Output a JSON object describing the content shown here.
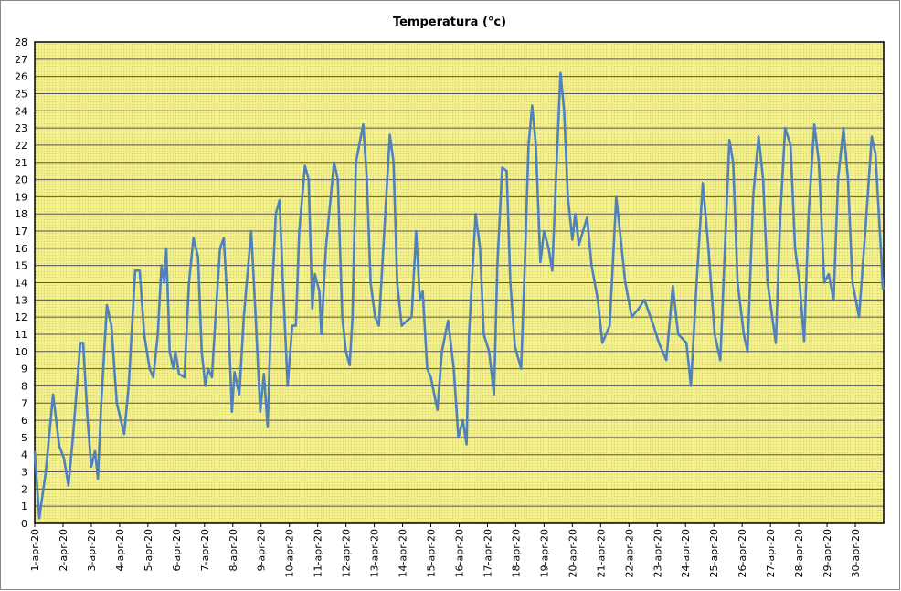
{
  "chart_data": {
    "type": "line",
    "title": "Temperatura (°c)",
    "x": [
      0,
      0.16,
      0.39,
      0.65,
      0.87,
      1.03,
      1.19,
      1.35,
      1.61,
      1.71,
      1.87,
      2.0,
      2.13,
      2.23,
      2.35,
      2.55,
      2.71,
      2.9,
      3.16,
      3.32,
      3.55,
      3.71,
      3.87,
      4.06,
      4.19,
      4.35,
      4.48,
      4.58,
      4.65,
      4.77,
      4.9,
      4.97,
      5.1,
      5.29,
      5.45,
      5.61,
      5.77,
      5.9,
      6.03,
      6.13,
      6.26,
      6.39,
      6.55,
      6.68,
      6.84,
      6.97,
      7.06,
      7.23,
      7.39,
      7.65,
      7.81,
      7.97,
      8.1,
      8.23,
      8.35,
      8.52,
      8.65,
      8.77,
      8.94,
      9.1,
      9.23,
      9.35,
      9.55,
      9.68,
      9.81,
      9.9,
      10.06,
      10.13,
      10.29,
      10.58,
      10.71,
      10.87,
      11.0,
      11.13,
      11.23,
      11.35,
      11.61,
      11.74,
      11.87,
      12.03,
      12.16,
      12.32,
      12.55,
      12.68,
      12.81,
      12.97,
      13.16,
      13.32,
      13.48,
      13.61,
      13.71,
      13.87,
      14.0,
      14.23,
      14.39,
      14.61,
      14.81,
      14.97,
      15.13,
      15.26,
      15.35,
      15.58,
      15.74,
      15.87,
      16.06,
      16.23,
      16.35,
      16.52,
      16.68,
      16.81,
      16.97,
      17.19,
      17.32,
      17.45,
      17.58,
      17.71,
      17.87,
      18.0,
      18.16,
      18.29,
      18.42,
      18.58,
      18.71,
      18.84,
      19.0,
      19.1,
      19.23,
      19.52,
      19.68,
      19.9,
      20.06,
      20.32,
      20.55,
      20.68,
      20.87,
      21.1,
      21.35,
      21.55,
      21.87,
      22.06,
      22.32,
      22.55,
      22.74,
      23.03,
      23.19,
      23.39,
      23.61,
      23.81,
      24.03,
      24.23,
      24.39,
      24.55,
      24.68,
      24.84,
      25.06,
      25.19,
      25.39,
      25.58,
      25.74,
      25.9,
      26.19,
      26.35,
      26.52,
      26.71,
      26.87,
      27.03,
      27.19,
      27.35,
      27.55,
      27.71,
      27.9,
      28.06,
      28.23,
      28.39,
      28.58,
      28.74,
      28.9,
      29.13,
      29.35,
      29.58,
      29.71,
      29.9,
      29.97
    ],
    "series": [
      {
        "color": "#4f81bd",
        "values": [
          4.2,
          0.3,
          3,
          7.5,
          4.5,
          3.8,
          2.2,
          5,
          10.5,
          10.5,
          6,
          3.3,
          4.2,
          2.6,
          7,
          12.7,
          11.5,
          7,
          5.2,
          8,
          14.7,
          14.7,
          11,
          9,
          8.5,
          11,
          15,
          14,
          16,
          10,
          9,
          10,
          8.7,
          8.5,
          14,
          16.6,
          15.5,
          10,
          8,
          9,
          8.5,
          12,
          16,
          16.6,
          12,
          6.5,
          8.8,
          7.5,
          12,
          17,
          12,
          6.5,
          8.7,
          5.6,
          12,
          18,
          18.8,
          14,
          8,
          11.5,
          11.5,
          17,
          20.8,
          20,
          12.5,
          14.5,
          13.5,
          11,
          16,
          21,
          20,
          12,
          10,
          9.2,
          12,
          21,
          23.2,
          20,
          14,
          12,
          11.5,
          16,
          22.6,
          21,
          14,
          11.5,
          11.8,
          12,
          17,
          13,
          13.5,
          9,
          8.5,
          6.6,
          10,
          11.8,
          9,
          5,
          6,
          4.6,
          11,
          18,
          16,
          11,
          10,
          7.5,
          15,
          20.7,
          20.5,
          14,
          10.3,
          9,
          15,
          22,
          24.3,
          22,
          15.2,
          17,
          16,
          14.7,
          20,
          26.2,
          24,
          19,
          16.5,
          18,
          16.2,
          17.8,
          15,
          13,
          10.5,
          11.5,
          19,
          17,
          14,
          12,
          12.5,
          13,
          11.5,
          10.5,
          9.5,
          13.8,
          11,
          10.5,
          8,
          14,
          19.8,
          16,
          11,
          9.5,
          16,
          22.3,
          21,
          14,
          11,
          10,
          19,
          22.5,
          20,
          14,
          10.5,
          18,
          23,
          22,
          16,
          14,
          10.6,
          18,
          23.2,
          21,
          14,
          14.5,
          13,
          20,
          23,
          20,
          14,
          12,
          17,
          22.5,
          21.5,
          16,
          13.6
        ]
      }
    ],
    "xlim": [
      0,
      30
    ],
    "xticks": [
      {
        "value": 0,
        "label": "1-apr-20"
      },
      {
        "value": 1,
        "label": "2-apr-20"
      },
      {
        "value": 2,
        "label": "3-apr-20"
      },
      {
        "value": 3,
        "label": "4-apr-20"
      },
      {
        "value": 4,
        "label": "5-apr-20"
      },
      {
        "value": 5,
        "label": "6-apr-20"
      },
      {
        "value": 6,
        "label": "7-apr-20"
      },
      {
        "value": 7,
        "label": "8-apr-20"
      },
      {
        "value": 8,
        "label": "9-apr-20"
      },
      {
        "value": 9,
        "label": "10-apr-20"
      },
      {
        "value": 10,
        "label": "11-apr-20"
      },
      {
        "value": 11,
        "label": "12-apr-20"
      },
      {
        "value": 12,
        "label": "13-apr-20"
      },
      {
        "value": 13,
        "label": "14-apr-20"
      },
      {
        "value": 14,
        "label": "15-apr-20"
      },
      {
        "value": 15,
        "label": "16-apr-20"
      },
      {
        "value": 16,
        "label": "17-apr-20"
      },
      {
        "value": 17,
        "label": "18-apr-20"
      },
      {
        "value": 18,
        "label": "19-apr-20"
      },
      {
        "value": 19,
        "label": "20-apr-20"
      },
      {
        "value": 20,
        "label": "21-apr-20"
      },
      {
        "value": 21,
        "label": "22-apr-20"
      },
      {
        "value": 22,
        "label": "23-apr-20"
      },
      {
        "value": 23,
        "label": "24-apr-20"
      },
      {
        "value": 24,
        "label": "25-apr-20"
      },
      {
        "value": 25,
        "label": "26-apr-20"
      },
      {
        "value": 26,
        "label": "27-apr-20"
      },
      {
        "value": 27,
        "label": "28-apr-20"
      },
      {
        "value": 28,
        "label": "29-apr-20"
      },
      {
        "value": 29,
        "label": "30-apr-20"
      }
    ],
    "ylim": [
      0,
      28
    ],
    "yticks": [
      0,
      1,
      2,
      3,
      4,
      5,
      6,
      7,
      8,
      9,
      10,
      11,
      12,
      13,
      14,
      15,
      16,
      17,
      18,
      19,
      20,
      21,
      22,
      23,
      24,
      25,
      26,
      27,
      28
    ],
    "grid": true
  }
}
